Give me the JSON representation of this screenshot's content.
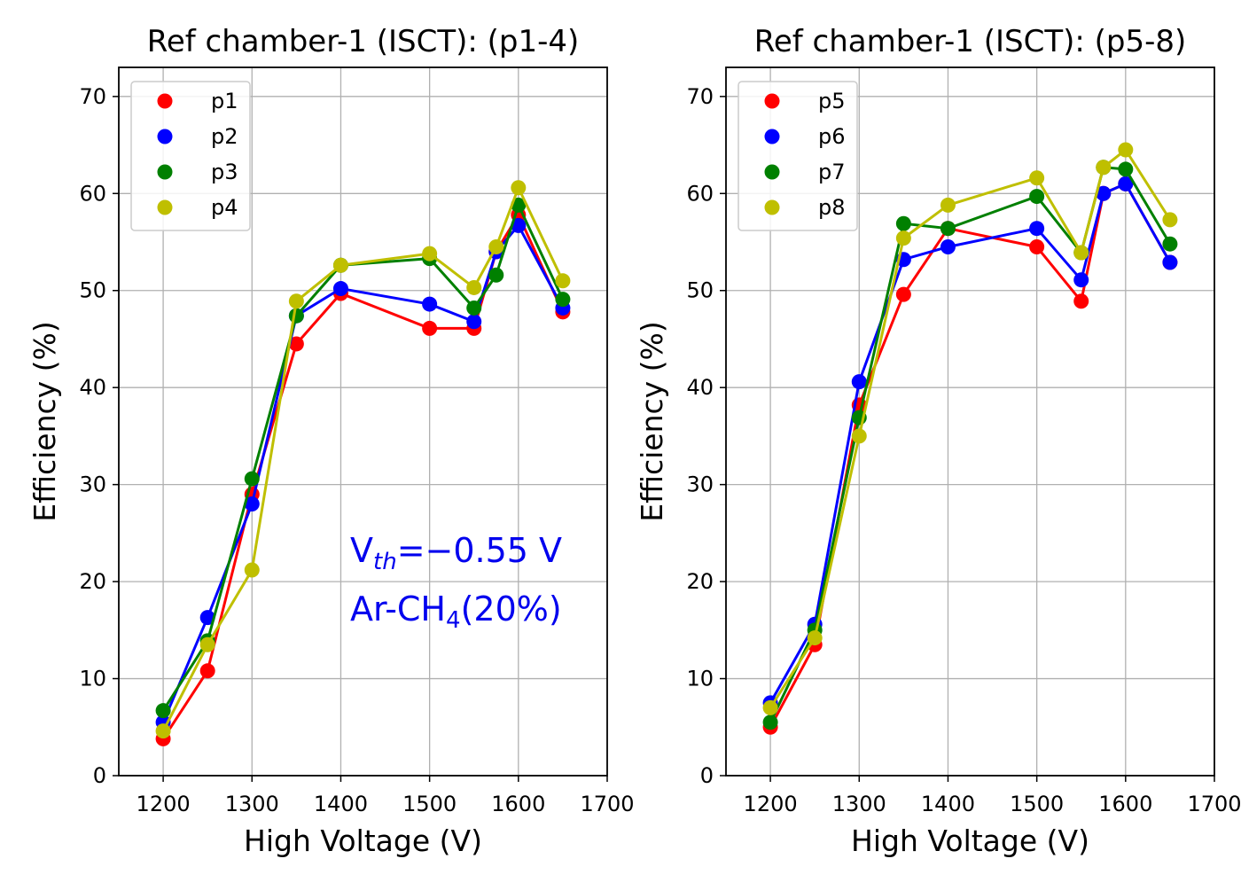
{
  "chart_data": [
    {
      "type": "line",
      "title": "Ref chamber-1 (ISCT): (p1-4)",
      "xlabel": "High Voltage (V)",
      "ylabel": "Efficiency (%)",
      "xlim": [
        1150,
        1700
      ],
      "ylim": [
        0,
        73
      ],
      "xticks": [
        1200,
        1300,
        1400,
        1500,
        1600,
        1700
      ],
      "yticks": [
        0,
        10,
        20,
        30,
        40,
        50,
        60,
        70
      ],
      "grid": true,
      "legend_position": "top-left",
      "annotation": {
        "vth_base": "V",
        "vth_sub": "th",
        "vth_rest": "=−0.55 V",
        "gas_a": "Ar-CH",
        "gas_sub": "4",
        "gas_b": "(20%)",
        "color": "#0000ee"
      },
      "series": [
        {
          "name": "p1",
          "color": "#ff0000",
          "x": [
            1200,
            1250,
            1300,
            1350,
            1400,
            1500,
            1550,
            1575,
            1600,
            1650
          ],
          "y": [
            3.8,
            10.8,
            29.0,
            44.5,
            49.7,
            46.1,
            46.1,
            54.0,
            57.8,
            47.8
          ]
        },
        {
          "name": "p2",
          "color": "#0000ff",
          "x": [
            1200,
            1250,
            1300,
            1350,
            1400,
            1500,
            1550,
            1575,
            1600,
            1650
          ],
          "y": [
            5.5,
            16.3,
            28.0,
            47.4,
            50.2,
            48.6,
            46.8,
            54.0,
            56.7,
            48.2
          ]
        },
        {
          "name": "p3",
          "color": "#008000",
          "x": [
            1200,
            1250,
            1300,
            1350,
            1400,
            1500,
            1550,
            1575,
            1600,
            1650
          ],
          "y": [
            6.7,
            13.9,
            30.6,
            47.4,
            52.6,
            53.3,
            48.2,
            51.6,
            58.8,
            49.1
          ]
        },
        {
          "name": "p4",
          "color": "#bfbf00",
          "x": [
            1200,
            1250,
            1300,
            1350,
            1400,
            1500,
            1550,
            1575,
            1600,
            1650
          ],
          "y": [
            4.6,
            13.5,
            21.2,
            48.9,
            52.6,
            53.8,
            50.3,
            54.5,
            60.6,
            51.0
          ]
        }
      ]
    },
    {
      "type": "line",
      "title": "Ref chamber-1 (ISCT): (p5-8)",
      "xlabel": "High Voltage (V)",
      "ylabel": "Efficiency (%)",
      "xlim": [
        1150,
        1700
      ],
      "ylim": [
        0,
        73
      ],
      "xticks": [
        1200,
        1300,
        1400,
        1500,
        1600,
        1700
      ],
      "yticks": [
        0,
        10,
        20,
        30,
        40,
        50,
        60,
        70
      ],
      "grid": true,
      "legend_position": "top-left",
      "series": [
        {
          "name": "p5",
          "color": "#ff0000",
          "x": [
            1200,
            1250,
            1300,
            1350,
            1400,
            1500,
            1550,
            1575,
            1600,
            1650
          ],
          "y": [
            5.0,
            13.5,
            38.2,
            49.6,
            56.4,
            54.5,
            48.9,
            60.0,
            61.0,
            52.9
          ]
        },
        {
          "name": "p6",
          "color": "#0000ff",
          "x": [
            1200,
            1250,
            1300,
            1350,
            1400,
            1500,
            1550,
            1575,
            1600,
            1650
          ],
          "y": [
            7.5,
            15.6,
            40.6,
            53.2,
            54.5,
            56.4,
            51.1,
            60.0,
            61.0,
            52.9
          ]
        },
        {
          "name": "p7",
          "color": "#008000",
          "x": [
            1200,
            1250,
            1300,
            1350,
            1400,
            1500,
            1550,
            1575,
            1600,
            1650
          ],
          "y": [
            5.5,
            15.0,
            36.9,
            56.9,
            56.4,
            59.7,
            53.9,
            62.7,
            62.5,
            54.8
          ]
        },
        {
          "name": "p8",
          "color": "#bfbf00",
          "x": [
            1200,
            1250,
            1300,
            1350,
            1400,
            1500,
            1550,
            1575,
            1600,
            1650
          ],
          "y": [
            7.0,
            14.2,
            35.0,
            55.4,
            58.8,
            61.6,
            53.9,
            62.7,
            64.5,
            57.3
          ]
        }
      ]
    }
  ]
}
